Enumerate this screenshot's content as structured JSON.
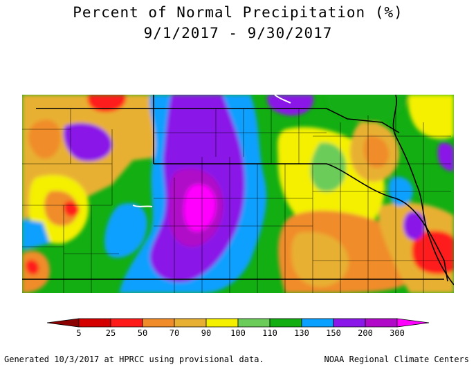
{
  "title": {
    "line1": "Percent of Normal Precipitation (%)",
    "line2": "9/1/2017 - 9/30/2017"
  },
  "legend": {
    "breaks": [
      "5",
      "25",
      "50",
      "70",
      "90",
      "100",
      "110",
      "130",
      "150",
      "200",
      "300"
    ],
    "colors": [
      "#8b0000",
      "#d40000",
      "#ff1a1a",
      "#f08c2a",
      "#e8b032",
      "#f4f000",
      "#6ccc5a",
      "#12ae12",
      "#0aa0ff",
      "#8a18e8",
      "#b00ac8",
      "#ff00ff"
    ]
  },
  "footer": {
    "left": "Generated 10/3/2017 at HPRCC using provisional data.",
    "right": "NOAA Regional Climate Centers"
  },
  "colors": {
    "red": "#ff1a1a",
    "orange": "#f08c2a",
    "tan": "#e8b032",
    "yellow": "#f4f000",
    "lightgreen": "#6ccc5a",
    "green": "#12ae12",
    "blue": "#0aa0ff",
    "purple": "#8a18e8",
    "violet": "#b00ac8",
    "magenta": "#ff00ff",
    "border": "#000000"
  }
}
